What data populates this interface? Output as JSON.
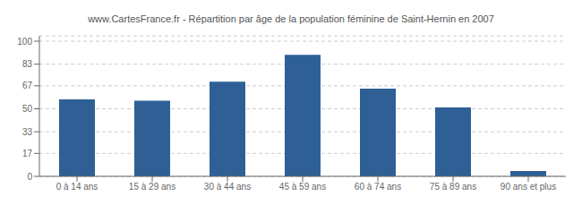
{
  "chart_data": {
    "type": "bar",
    "title": "www.CartesFrance.fr - Répartition par âge de la population féminine de Saint-Hernin en 2007",
    "categories": [
      "0 à 14 ans",
      "15 à 29 ans",
      "30 à 44 ans",
      "45 à 59 ans",
      "60 à 74 ans",
      "75 à 89 ans",
      "90 ans et plus"
    ],
    "values": [
      57,
      56,
      70,
      90,
      65,
      51,
      4
    ],
    "color": "#2E6096",
    "ylim": [
      0,
      104
    ],
    "yticks": [
      0,
      17,
      33,
      50,
      67,
      83,
      100
    ],
    "grid": true
  }
}
